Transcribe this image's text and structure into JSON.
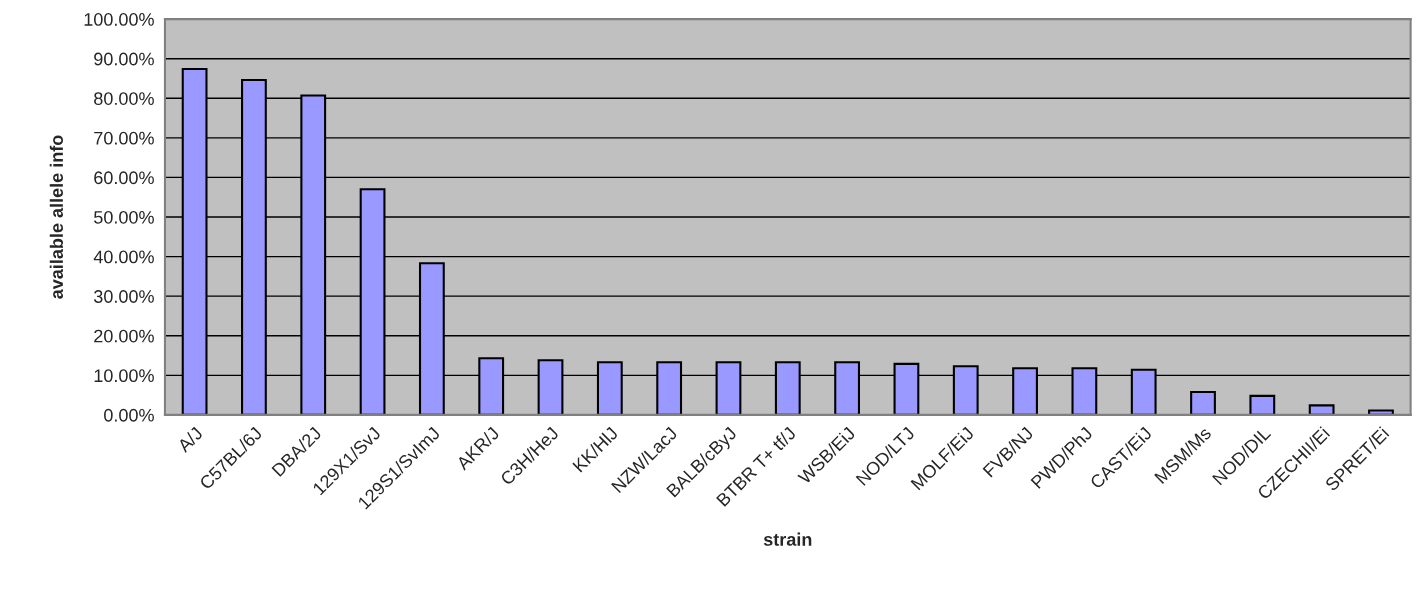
{
  "chart_data": {
    "type": "bar",
    "xlabel": "strain",
    "ylabel": "available allele info",
    "categories": [
      "A/J",
      "C57BL/6J",
      "DBA/2J",
      "129X1/SvJ",
      "129S1/SvImJ",
      "AKR/J",
      "C3H/HeJ",
      "KK/HlJ",
      "NZW/LacJ",
      "BALB/cByJ",
      "BTBR T+ tf/J",
      "WSB/EiJ",
      "NOD/LTJ",
      "MOLF/EiJ",
      "FVB/NJ",
      "PWD/PhJ",
      "CAST/EiJ",
      "MSM/Ms",
      "NOD/DIL",
      "CZECHII/Ei",
      "SPRET/Ei"
    ],
    "values": [
      87.4,
      84.6,
      80.7,
      57.0,
      38.3,
      14.3,
      13.8,
      13.3,
      13.3,
      13.3,
      13.3,
      13.3,
      12.9,
      12.3,
      11.8,
      11.8,
      11.4,
      5.8,
      4.8,
      2.4,
      1.1
    ],
    "color": "#9999ff",
    "ylim": [
      0,
      100
    ],
    "yticks": [
      {
        "value": 0,
        "label": "0.00%"
      },
      {
        "value": 10,
        "label": "10.00%"
      },
      {
        "value": 20,
        "label": "20.00%"
      },
      {
        "value": 30,
        "label": "30.00%"
      },
      {
        "value": 40,
        "label": "40.00%"
      },
      {
        "value": 50,
        "label": "50.00%"
      },
      {
        "value": 60,
        "label": "60.00%"
      },
      {
        "value": 70,
        "label": "70.00%"
      },
      {
        "value": 80,
        "label": "80.00%"
      },
      {
        "value": 90,
        "label": "90.00%"
      },
      {
        "value": 100,
        "label": "100.00%"
      }
    ],
    "grid": "y",
    "legend": false
  }
}
